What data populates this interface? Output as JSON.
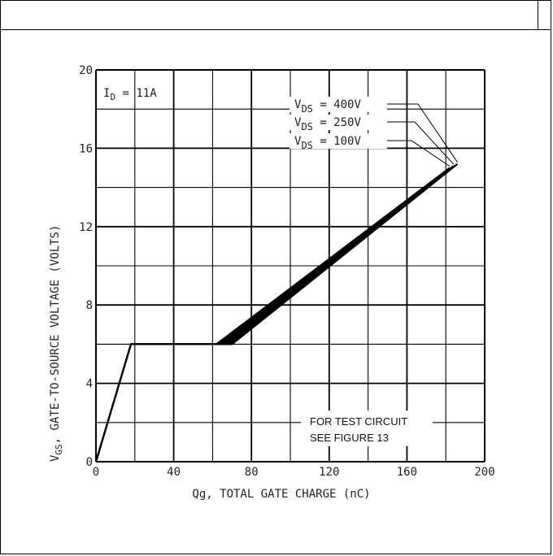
{
  "chart_data": {
    "type": "line",
    "xlabel": "Qg, TOTAL GATE CHARGE (nC)",
    "ylabel": "GATE-TO-SOURCE VOLTAGE (VOLTS)",
    "ylabel_symbol": "V",
    "ylabel_sub": "GS",
    "xlim": [
      0,
      200
    ],
    "ylim": [
      0,
      20
    ],
    "xticks": [
      0,
      40,
      80,
      120,
      160,
      200
    ],
    "yticks": [
      0,
      4,
      8,
      12,
      16,
      20
    ],
    "grid": true,
    "annotations": {
      "condition_main": "I",
      "condition_sub": "D",
      "condition_rest": " = 11A",
      "note_line1": "FOR TEST CIRCUIT",
      "note_line2": "SEE FIGURE 13"
    },
    "series": [
      {
        "name": "VDS = 400V",
        "label_v": "V",
        "label_sub": "DS",
        "label_rest": " = 400V",
        "x": [
          0,
          18,
          70,
          186
        ],
        "y": [
          0,
          6,
          6,
          15.2
        ]
      },
      {
        "name": "VDS = 250V",
        "label_v": "V",
        "label_sub": "DS",
        "label_rest": " = 250V",
        "x": [
          0,
          18,
          66,
          184
        ],
        "y": [
          0,
          6,
          6,
          15.1
        ]
      },
      {
        "name": "VDS = 100V",
        "label_v": "V",
        "label_sub": "DS",
        "label_rest": " = 100V",
        "x": [
          0,
          18,
          62,
          182
        ],
        "y": [
          0,
          6,
          6,
          15.0
        ]
      }
    ]
  }
}
